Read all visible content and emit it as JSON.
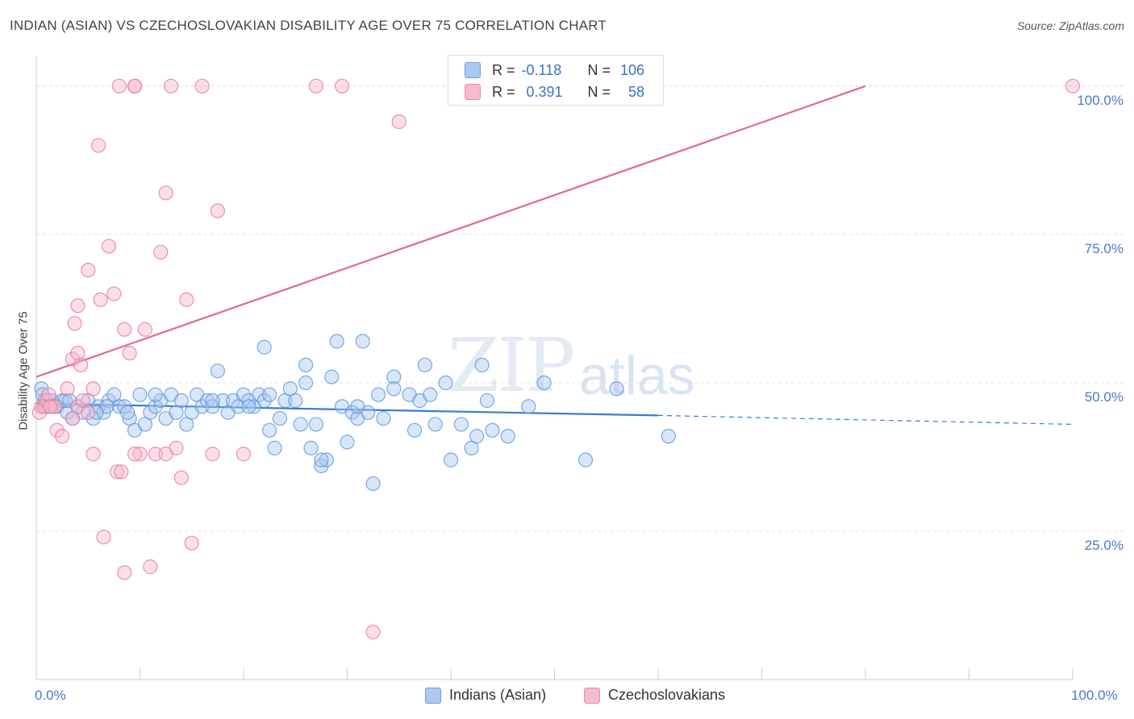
{
  "title": "INDIAN (ASIAN) VS CZECHOSLOVAKIAN DISABILITY AGE OVER 75 CORRELATION CHART",
  "source": "Source: ZipAtlas.com",
  "watermark": {
    "zip": "ZIP",
    "atlas": "atlas"
  },
  "legend": {
    "r_label": "R =",
    "n_label": "N =",
    "rows": [
      {
        "r": "-0.118",
        "n": "106",
        "color": "#aac8f0"
      },
      {
        "r": "0.391",
        "n": "58",
        "color": "#f7b9cc"
      }
    ]
  },
  "bottom_legend": [
    {
      "label": "Indians (Asian)",
      "color": "#aac8f0"
    },
    {
      "label": "Czechoslovakians",
      "color": "#f7b9cc"
    }
  ],
  "chart_data": {
    "type": "scatter",
    "title": "INDIAN (ASIAN) VS CZECHOSLOVAKIAN DISABILITY AGE OVER 75 CORRELATION CHART",
    "xlabel": "",
    "ylabel": "Disability Age Over 75",
    "xlim": [
      0,
      100
    ],
    "ylim": [
      0,
      105
    ],
    "x_ticks": [
      "0.0%",
      "100.0%"
    ],
    "y_ticks": [
      "25.0%",
      "50.0%",
      "75.0%",
      "100.0%"
    ],
    "y_tick_values": [
      25,
      50,
      75,
      100
    ],
    "grid": true,
    "series": [
      {
        "name": "Indians (Asian)",
        "color": "#5b95e0",
        "fill": "#aac8f0",
        "trend": {
          "x0": 0,
          "y0": 46.5,
          "x1": 60,
          "y1": 44.5,
          "dashed_to_x": 100,
          "dashed_to_y": 43.0,
          "color": "#3a7bd5"
        },
        "points": [
          [
            0.5,
            49
          ],
          [
            0.8,
            47
          ],
          [
            1.0,
            46
          ],
          [
            1.2,
            46
          ],
          [
            1.5,
            47
          ],
          [
            2.0,
            46
          ],
          [
            2.5,
            47
          ],
          [
            3.0,
            45
          ],
          [
            3.5,
            44
          ],
          [
            4.0,
            46
          ],
          [
            4.5,
            45
          ],
          [
            5.0,
            47
          ],
          [
            5.5,
            44
          ],
          [
            6.0,
            46
          ],
          [
            6.5,
            45
          ],
          [
            7.0,
            47
          ],
          [
            7.5,
            48
          ],
          [
            8.0,
            46
          ],
          [
            8.5,
            46
          ],
          [
            9.0,
            44
          ],
          [
            9.5,
            42
          ],
          [
            10.0,
            48
          ],
          [
            10.5,
            43
          ],
          [
            11.0,
            45
          ],
          [
            11.5,
            46
          ],
          [
            12.0,
            47
          ],
          [
            12.5,
            44
          ],
          [
            13.0,
            48
          ],
          [
            13.5,
            45
          ],
          [
            14.0,
            47
          ],
          [
            14.5,
            43
          ],
          [
            15.0,
            45
          ],
          [
            15.5,
            48
          ],
          [
            16.0,
            46
          ],
          [
            16.5,
            47
          ],
          [
            17.0,
            46
          ],
          [
            17.5,
            52
          ],
          [
            18.0,
            47
          ],
          [
            18.5,
            45
          ],
          [
            19.0,
            47
          ],
          [
            19.5,
            46
          ],
          [
            20.0,
            48
          ],
          [
            20.5,
            47
          ],
          [
            21.0,
            46
          ],
          [
            21.5,
            48
          ],
          [
            22.0,
            47
          ],
          [
            22.5,
            42
          ],
          [
            23.0,
            39
          ],
          [
            23.5,
            44
          ],
          [
            24.0,
            47
          ],
          [
            24.5,
            49
          ],
          [
            25.0,
            47
          ],
          [
            25.5,
            43
          ],
          [
            26.0,
            50
          ],
          [
            26.5,
            39
          ],
          [
            27.0,
            43
          ],
          [
            27.5,
            36
          ],
          [
            28.0,
            37
          ],
          [
            28.5,
            51
          ],
          [
            29.0,
            57
          ],
          [
            29.5,
            46
          ],
          [
            30.0,
            40
          ],
          [
            30.5,
            45
          ],
          [
            31.0,
            44
          ],
          [
            31.5,
            57
          ],
          [
            32.0,
            45
          ],
          [
            32.5,
            33
          ],
          [
            33.0,
            48
          ],
          [
            33.5,
            44
          ],
          [
            34.5,
            51
          ],
          [
            34.5,
            49
          ],
          [
            36.0,
            48
          ],
          [
            36.5,
            42
          ],
          [
            37.0,
            47
          ],
          [
            37.5,
            53
          ],
          [
            38.0,
            48
          ],
          [
            38.5,
            43
          ],
          [
            39.5,
            50
          ],
          [
            40.0,
            37
          ],
          [
            41.0,
            43
          ],
          [
            42.0,
            39
          ],
          [
            42.5,
            41
          ],
          [
            43.0,
            53
          ],
          [
            43.5,
            47
          ],
          [
            44.0,
            42
          ],
          [
            45.5,
            41
          ],
          [
            47.5,
            46
          ],
          [
            49.0,
            50
          ],
          [
            53.0,
            37
          ],
          [
            56.0,
            49
          ],
          [
            61.0,
            41
          ],
          [
            2.8,
            47
          ],
          [
            6.8,
            46
          ],
          [
            17.0,
            47
          ],
          [
            22.0,
            56
          ],
          [
            22.5,
            48
          ],
          [
            26.0,
            53
          ],
          [
            20.5,
            46
          ],
          [
            11.5,
            48
          ],
          [
            8.8,
            45
          ],
          [
            0.6,
            48
          ],
          [
            1.8,
            46
          ],
          [
            3.2,
            47
          ],
          [
            5.8,
            45
          ],
          [
            27.5,
            37
          ],
          [
            31.0,
            46
          ]
        ]
      },
      {
        "name": "Czechoslovakians",
        "color": "#e8789b",
        "fill": "#f7b9cc",
        "trend": {
          "x0": 0,
          "y0": 51,
          "x1": 80,
          "y1": 100,
          "color": "#e06a92"
        },
        "points": [
          [
            0.3,
            45
          ],
          [
            0.5,
            46
          ],
          [
            0.8,
            46
          ],
          [
            1.0,
            47
          ],
          [
            1.2,
            48
          ],
          [
            1.5,
            46
          ],
          [
            2.0,
            42
          ],
          [
            2.5,
            41
          ],
          [
            3.0,
            49
          ],
          [
            3.5,
            44
          ],
          [
            4.0,
            46
          ],
          [
            4.5,
            47
          ],
          [
            5.0,
            45
          ],
          [
            5.5,
            38
          ],
          [
            6.0,
            90
          ],
          [
            6.5,
            24
          ],
          [
            7.0,
            73
          ],
          [
            7.5,
            65
          ],
          [
            8.0,
            100
          ],
          [
            8.5,
            59
          ],
          [
            9.0,
            55
          ],
          [
            9.5,
            100
          ],
          [
            10.0,
            38
          ],
          [
            10.5,
            59
          ],
          [
            11.0,
            19
          ],
          [
            11.5,
            38
          ],
          [
            12.0,
            72
          ],
          [
            12.5,
            82
          ],
          [
            13.0,
            100
          ],
          [
            13.5,
            39
          ],
          [
            14.0,
            34
          ],
          [
            14.5,
            64
          ],
          [
            15.0,
            23
          ],
          [
            16.0,
            100
          ],
          [
            17.0,
            38
          ],
          [
            17.5,
            79
          ],
          [
            20.0,
            38
          ],
          [
            27.0,
            100
          ],
          [
            29.5,
            100
          ],
          [
            32.5,
            8
          ],
          [
            35.0,
            94
          ],
          [
            4.0,
            63
          ],
          [
            3.7,
            60
          ],
          [
            3.5,
            54
          ],
          [
            4.3,
            53
          ],
          [
            5.5,
            49
          ],
          [
            6.2,
            64
          ],
          [
            7.8,
            35
          ],
          [
            8.5,
            18
          ],
          [
            9.5,
            38
          ],
          [
            12.5,
            38
          ],
          [
            4.0,
            55
          ],
          [
            1.8,
            46
          ],
          [
            1.3,
            46
          ],
          [
            100,
            100
          ],
          [
            9.5,
            100
          ],
          [
            5.0,
            69
          ],
          [
            8.2,
            35
          ]
        ]
      }
    ]
  }
}
